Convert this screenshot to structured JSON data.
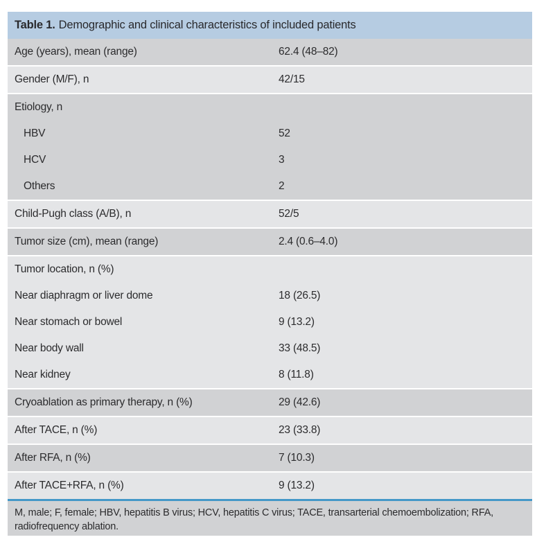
{
  "table": {
    "label": "Table 1.",
    "title": "Demographic and clinical characteristics of included patients"
  },
  "rows": [
    {
      "label": "Age (years), mean (range)",
      "value": "62.4 (48–82)"
    },
    {
      "label": "Gender (M/F), n",
      "value": "42/15"
    },
    {
      "label": "Etiology, n",
      "value": ""
    },
    {
      "label": "HBV",
      "value": "52"
    },
    {
      "label": "HCV",
      "value": "3"
    },
    {
      "label": "Others",
      "value": "2"
    },
    {
      "label": "Child-Pugh class (A/B), n",
      "value": "52/5"
    },
    {
      "label": "Tumor size (cm), mean (range)",
      "value": "2.4 (0.6–4.0)"
    },
    {
      "label": "Tumor location, n (%)",
      "value": ""
    },
    {
      "label": "Near diaphragm or liver dome",
      "value": "18 (26.5)"
    },
    {
      "label": "Near stomach or bowel",
      "value": "9 (13.2)"
    },
    {
      "label": "Near body wall",
      "value": "33 (48.5)"
    },
    {
      "label": "Near kidney",
      "value": "8 (11.8)"
    },
    {
      "label": "Cryoablation as primary therapy, n (%)",
      "value": "29 (42.6)"
    },
    {
      "label": "After TACE, n (%)",
      "value": "23 (33.8)"
    },
    {
      "label": "After RFA, n (%)",
      "value": "7 (10.3)"
    },
    {
      "label": "After TACE+RFA, n (%)",
      "value": "9 (13.2)"
    }
  ],
  "footnote": {
    "line1": "M, male; F, female; HBV, hepatitis B virus; HCV, hepatitis C virus; TACE, transarterial chemoembolization; RFA,",
    "line2": "radiofrequency ablation."
  },
  "colors": {
    "header_bg": "#b6cce2",
    "row_dark": "#d1d2d4",
    "row_light": "#e4e5e7",
    "footnote_bg": "#d1d2d4",
    "divider_blue": "#4498c8",
    "text": "#2b2b2d"
  }
}
